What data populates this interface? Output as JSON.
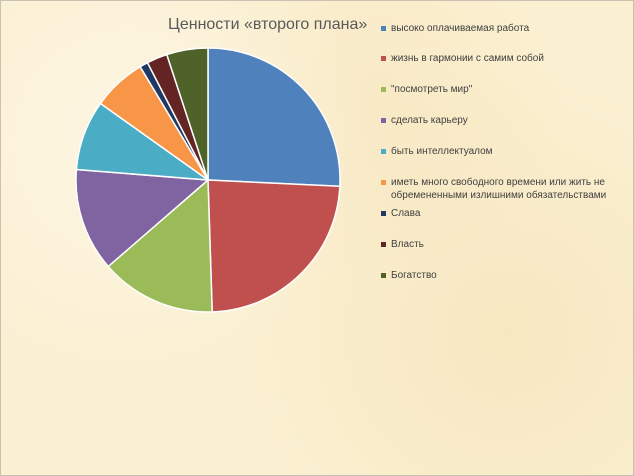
{
  "chart_data": {
    "type": "pie",
    "title": "Ценности «второго плана»",
    "categories": [
      "высоко оплачиваемая работа",
      "жизнь в гармонии с самим собой",
      "\"посмотреть мир\"",
      "сделать карьеру",
      "быть интеллектуалом",
      "иметь много свободного времени или жить не обремененными излишними обязательствами",
      "Слава",
      "Власть",
      "Богатство"
    ],
    "values": [
      25.5,
      23.5,
      14,
      12.5,
      8.5,
      6.5,
      1,
      2.5,
      5
    ],
    "colors": [
      "#4f81bd",
      "#c0504d",
      "#9bbb59",
      "#8064a2",
      "#4bacc6",
      "#f79646",
      "#1f3864",
      "#632423",
      "#4f6228"
    ],
    "legend_position": "right"
  }
}
